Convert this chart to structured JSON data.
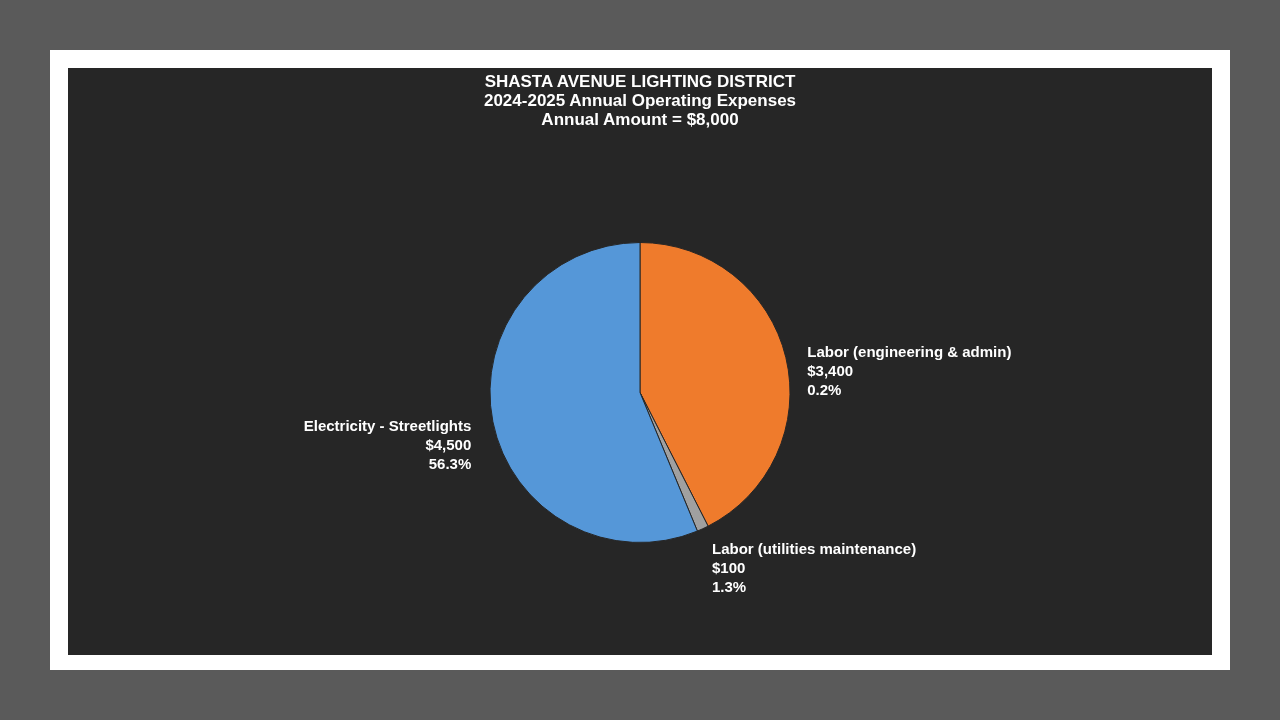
{
  "chart_data": {
    "type": "pie",
    "title": "SHASTA AVENUE LIGHTING DISTRICT",
    "subtitle": "2024-2025 Annual Operating Expenses\nAnnual Amount = $8,000",
    "categories": [
      "Labor (engineering & admin)",
      "Labor (utilities maintenance)",
      "Electricity - Streetlights"
    ],
    "values": [
      3400,
      100,
      4500
    ],
    "colors": [
      "#ef7b2c",
      "#a0a0a0",
      "#5597d8"
    ],
    "value_labels": [
      "$3,400\n0.2%",
      "$100\n1.3%",
      "$4,500\n56.3%"
    ],
    "legend": false
  }
}
